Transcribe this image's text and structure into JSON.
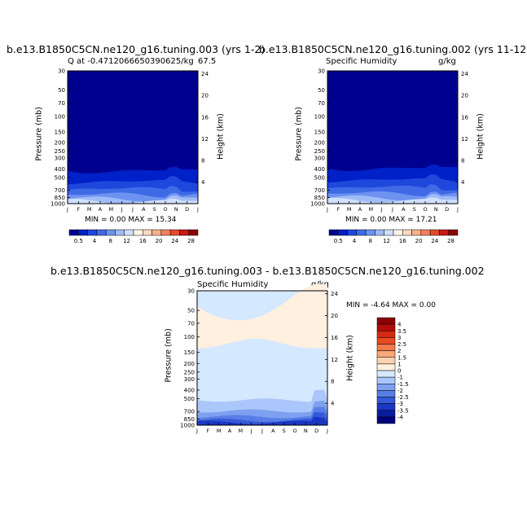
{
  "chart_data": [
    {
      "type": "heatmap",
      "title": "b.e13.B1850C5CN.ne120_g16.tuning.003 (yrs 1-2)",
      "subtitle_left": "Q at -0.4712066650390625/kg",
      "subtitle_right": "67.5",
      "ylabel": "Pressure (mb)",
      "ylabel_right": "Height (km)",
      "min_max": "MIN =    0.00 MAX =   15.34",
      "x_ticks": [
        "J",
        "F",
        "M",
        "A",
        "M",
        "J",
        "J",
        "A",
        "S",
        "O",
        "N",
        "D",
        "J"
      ],
      "y_ticks": [
        "30",
        "50",
        "70",
        "100",
        "150",
        "200",
        "250",
        "300",
        "400",
        "500",
        "700",
        "850",
        "1000"
      ],
      "height_ticks": [
        "24",
        "20",
        "16",
        "12",
        "8",
        "4"
      ],
      "colorbar_labels": [
        "0.5",
        "4",
        "8",
        "12",
        "16",
        "20",
        "24",
        "28"
      ]
    },
    {
      "type": "heatmap",
      "title": "b.e13.B1850C5CN.ne120_g16.tuning.002 (yrs 11-12",
      "subtitle_left": "Specific Humidity",
      "subtitle_right": "g/kg",
      "ylabel": "Pressure (mb)",
      "ylabel_right": "Height (km)",
      "min_max": "MIN =    0.00 MAX =   17.21",
      "x_ticks": [
        "J",
        "F",
        "M",
        "A",
        "M",
        "J",
        "J",
        "A",
        "S",
        "O",
        "N",
        "D",
        "J"
      ],
      "y_ticks": [
        "30",
        "50",
        "70",
        "100",
        "150",
        "200",
        "250",
        "300",
        "400",
        "500",
        "700",
        "850",
        "1000"
      ],
      "height_ticks": [
        "24",
        "20",
        "16",
        "12",
        "8",
        "4"
      ],
      "colorbar_labels": [
        "0.5",
        "4",
        "8",
        "12",
        "16",
        "20",
        "24",
        "28"
      ]
    },
    {
      "type": "heatmap",
      "title": "b.e13.B1850C5CN.ne120_g16.tuning.003 - b.e13.B1850C5CN.ne120_g16.tuning.002",
      "subtitle_left": "Specific Humidity",
      "subtitle_right": "g/kg",
      "ylabel": "Pressure (mb)",
      "ylabel_right": "Height (km)",
      "min_max": "MIN =   -4.64 MAX =    0.00",
      "x_ticks": [
        "J",
        "F",
        "M",
        "A",
        "M",
        "J",
        "J",
        "A",
        "S",
        "O",
        "N",
        "D",
        "J"
      ],
      "y_ticks": [
        "30",
        "50",
        "70",
        "100",
        "150",
        "200",
        "250",
        "300",
        "400",
        "500",
        "700",
        "850",
        "1000"
      ],
      "height_ticks": [
        "24",
        "20",
        "16",
        "12",
        "8",
        "4"
      ],
      "colorbar_labels": [
        "4",
        "3.5",
        "3",
        "2.5",
        "2",
        "1.5",
        "1",
        "0",
        "-1",
        "-1.5",
        "-2",
        "-2.5",
        "-3",
        "-3.5",
        "-4"
      ]
    }
  ],
  "colors": {
    "abs_scale": [
      "#00008f",
      "#0020c8",
      "#1e48dc",
      "#3f6ae6",
      "#6e92f0",
      "#a0bcf7",
      "#cfe0ff",
      "#fff4e6",
      "#fcd9bf",
      "#f9b08a",
      "#f3805c",
      "#e64a2e",
      "#c81a12",
      "#8b0000"
    ],
    "diff_scale": [
      "#8b0000",
      "#b40a0a",
      "#d42a12",
      "#e84a20",
      "#f27a4a",
      "#f9a878",
      "#fdd2b0",
      "#fff0e0",
      "#d4e8ff",
      "#aac6fa",
      "#7ea0f0",
      "#587ee6",
      "#3458d8",
      "#1a36c2",
      "#0a1c9e",
      "#00007a"
    ]
  }
}
